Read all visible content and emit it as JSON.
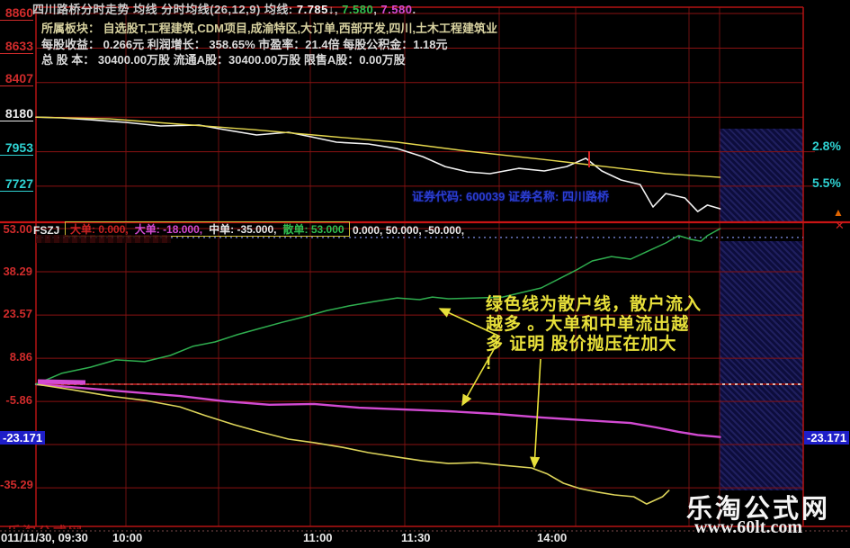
{
  "window": {
    "title": "四川路桥分时走势",
    "subtitle": "均线 分时均线(26,12,9) 均线:",
    "ma1": "7.785↓",
    "sep1": ", ",
    "ma2": "7.580",
    "sep2": ", ",
    "ma3": "7.580",
    "end": "."
  },
  "info": {
    "line1": "所属板块：  自选股T,工程建筑,CDM项目,成渝特区,大订单,西部开发,四川,土木工程建筑业",
    "line2": "每股收益：  0.266元     利润增长：  358.65%     市盈率：21.4倍    每股公积金：1.18元",
    "line3": "总 股 本：  30400.00万股   流通A股：30400.00万股   限售A股：0.00万股"
  },
  "security": {
    "code_label": "证券代码:",
    "code": "600039",
    "name_label": "证券名称:",
    "name": "四川路桥"
  },
  "indicator_header": {
    "name": "FSZJ",
    "items": [
      {
        "label": "大单:",
        "value": "0.000,"
      },
      {
        "label": "大单:",
        "value": "-18.000,"
      },
      {
        "label": "中单:",
        "value": "-35.000,"
      },
      {
        "label": "散单:",
        "value": "53.000"
      }
    ],
    "params": "0.000, 50.000, -50.000,"
  },
  "axes": {
    "price_ticks": [
      "8860",
      "8633",
      "8407",
      "8180",
      "7953",
      "7727"
    ],
    "flow_ticks": [
      "53.00",
      "38.29",
      "23.57",
      "8.86",
      "-5.86",
      "-35.29"
    ],
    "flow_current_left": "-23.171",
    "flow_current_right": "-23.171",
    "pct1": "2.8%",
    "pct2": "5.5%",
    "times": [
      "011/11/30, 09:30",
      "10:00",
      "11:00",
      "11:30",
      "14:00"
    ]
  },
  "annotation": {
    "line1": "绿色线为散户线，散户流入",
    "line2": "越多 。大单和中单流出越",
    "line3": "多 证明 股价抛压在加大",
    "line4": "!"
  },
  "watermark": {
    "name": "乐淘公式网",
    "url": "www.60lt.com"
  },
  "icons": {
    "up_arrow": "▲",
    "close": "✕"
  },
  "chart_data": [
    {
      "type": "line",
      "panel": "price",
      "title": "四川路桥分时走势",
      "x_axis": {
        "unit": "trading minutes from 09:30",
        "range": [
          0,
          240
        ],
        "labels": [
          "011/11/30, 09:30",
          "10:00",
          "11:00",
          "11:30",
          "14:00"
        ]
      },
      "y_axis": {
        "ticks": [
          8.86,
          8.633,
          8.407,
          8.18,
          7.953,
          7.727
        ],
        "tick_display": [
          "8860",
          "8633",
          "8407",
          "8180",
          "7953",
          "7727"
        ],
        "prev_close": 8.18,
        "right_labels": [
          "2.8%",
          "5.5%"
        ]
      },
      "grid": true,
      "series": [
        {
          "name": "price",
          "color": "#f2f2f2",
          "width": 1.6,
          "points": [
            [
              0,
              8.18
            ],
            [
              8,
              8.175
            ],
            [
              17,
              8.163
            ],
            [
              28,
              8.146
            ],
            [
              39,
              8.122
            ],
            [
              51,
              8.128
            ],
            [
              59,
              8.098
            ],
            [
              69,
              8.063
            ],
            [
              79,
              8.081
            ],
            [
              86,
              8.051
            ],
            [
              94,
              8.016
            ],
            [
              104,
              8.004
            ],
            [
              113,
              7.974
            ],
            [
              121,
              7.921
            ],
            [
              128,
              7.856
            ],
            [
              135,
              7.821
            ],
            [
              142,
              7.809
            ],
            [
              151,
              7.844
            ],
            [
              159,
              7.827
            ],
            [
              166,
              7.856
            ],
            [
              172,
              7.91
            ],
            [
              177,
              7.827
            ],
            [
              183,
              7.768
            ],
            [
              189,
              7.738
            ],
            [
              193,
              7.591
            ],
            [
              197,
              7.679
            ],
            [
              203,
              7.65
            ],
            [
              207,
              7.561
            ],
            [
              210,
              7.603
            ],
            [
              214,
              7.579
            ]
          ]
        },
        {
          "name": "avg_price",
          "color": "#e6d84e",
          "width": 1.4,
          "points": [
            [
              0,
              8.18
            ],
            [
              23,
              8.169
            ],
            [
              45,
              8.134
            ],
            [
              68,
              8.098
            ],
            [
              90,
              8.057
            ],
            [
              113,
              8.016
            ],
            [
              135,
              7.957
            ],
            [
              158,
              7.904
            ],
            [
              180,
              7.851
            ],
            [
              197,
              7.809
            ],
            [
              214,
              7.785
            ]
          ]
        }
      ]
    },
    {
      "type": "line",
      "panel": "fund_flow",
      "name": "FSZJ",
      "y_axis": {
        "ticks": [
          53.0,
          38.29,
          23.57,
          8.86,
          -5.86,
          -35.29
        ],
        "tick_display": [
          "53.00",
          "38.29",
          "23.57",
          "8.86",
          "-5.86",
          "-35.29"
        ],
        "current": -23.171
      },
      "ref_lines": [
        0.0,
        50.0,
        -50.0
      ],
      "grid": true,
      "series": [
        {
          "name": "特大单",
          "color": "#a81d1d",
          "width": 1.2,
          "points": [
            [
              0,
              0
            ],
            [
              214,
              0
            ]
          ]
        },
        {
          "name": "大单",
          "color": "#d24ad2",
          "width": 2.4,
          "points": [
            [
              0,
              0
            ],
            [
              17,
              -1.5
            ],
            [
              31,
              -2.8
            ],
            [
              45,
              -4.0
            ],
            [
              59,
              -5.8
            ],
            [
              73,
              -7.0
            ],
            [
              87,
              -6.7
            ],
            [
              101,
              -8.0
            ],
            [
              115,
              -8.6
            ],
            [
              129,
              -9.2
            ],
            [
              144,
              -10.1
            ],
            [
              158,
              -11.3
            ],
            [
              172,
              -12.3
            ],
            [
              186,
              -13.2
            ],
            [
              194,
              -14.7
            ],
            [
              201,
              -16.2
            ],
            [
              207,
              -17.3
            ],
            [
              214,
              -18.0
            ]
          ]
        },
        {
          "name": "中单",
          "color": "#ddd45a",
          "width": 1.6,
          "points": [
            [
              0,
              0
            ],
            [
              11,
              -1.8
            ],
            [
              23,
              -4.0
            ],
            [
              34,
              -5.5
            ],
            [
              45,
              -7.7
            ],
            [
              53,
              -10.7
            ],
            [
              62,
              -13.8
            ],
            [
              70,
              -16.2
            ],
            [
              79,
              -18.7
            ],
            [
              87,
              -19.9
            ],
            [
              96,
              -21.5
            ],
            [
              104,
              -23.3
            ],
            [
              113,
              -24.8
            ],
            [
              121,
              -26.1
            ],
            [
              129,
              -27.0
            ],
            [
              138,
              -26.7
            ],
            [
              146,
              -27.6
            ],
            [
              155,
              -28.5
            ],
            [
              160,
              -30.6
            ],
            [
              165,
              -33.7
            ],
            [
              170,
              -35.5
            ],
            [
              176,
              -36.8
            ],
            [
              181,
              -37.7
            ],
            [
              187,
              -38.3
            ],
            [
              191,
              -40.8
            ],
            [
              196,
              -38.3
            ],
            [
              198,
              -36.2
            ]
          ]
        },
        {
          "name": "散单",
          "color": "#2fae4f",
          "width": 1.5,
          "points": [
            [
              0,
              0
            ],
            [
              8,
              3.7
            ],
            [
              17,
              5.8
            ],
            [
              25,
              8.3
            ],
            [
              34,
              7.7
            ],
            [
              42,
              9.8
            ],
            [
              49,
              12.9
            ],
            [
              56,
              14.4
            ],
            [
              63,
              16.9
            ],
            [
              70,
              19.0
            ],
            [
              77,
              21.1
            ],
            [
              84,
              23.0
            ],
            [
              91,
              25.1
            ],
            [
              98,
              26.7
            ],
            [
              106,
              28.2
            ],
            [
              113,
              29.4
            ],
            [
              120,
              28.8
            ],
            [
              124,
              29.7
            ],
            [
              129,
              29.1
            ],
            [
              138,
              29.4
            ],
            [
              146,
              29.7
            ],
            [
              158,
              32.8
            ],
            [
              169,
              38.9
            ],
            [
              174,
              42.0
            ],
            [
              180,
              43.5
            ],
            [
              186,
              42.6
            ],
            [
              191,
              45.1
            ],
            [
              197,
              48.1
            ],
            [
              201,
              50.6
            ],
            [
              205,
              49.3
            ],
            [
              208,
              48.7
            ],
            [
              210,
              50.6
            ],
            [
              212,
              51.8
            ],
            [
              214,
              53.0
            ]
          ]
        }
      ]
    }
  ]
}
